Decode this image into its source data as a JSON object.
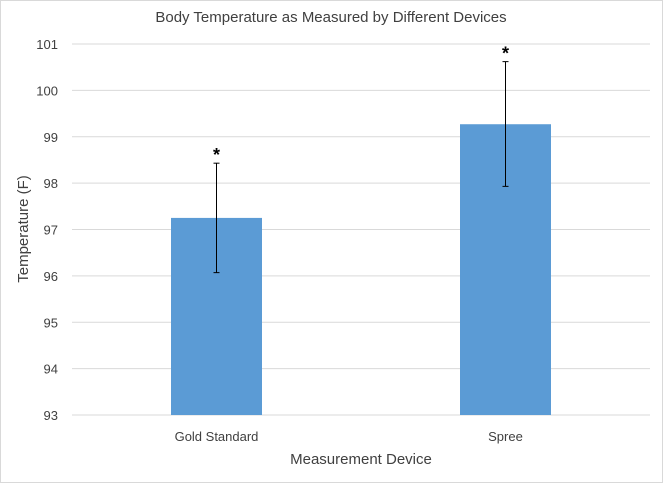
{
  "chart_data": {
    "type": "bar",
    "title": "Body Temperature as Measured by Different Devices",
    "xlabel": "Measurement Device",
    "ylabel": "Temperature (F)",
    "categories": [
      "Gold Standard",
      "Spree"
    ],
    "values": [
      97.25,
      99.27
    ],
    "error_bars": {
      "upper": [
        98.43,
        100.62
      ],
      "lower": [
        96.07,
        97.93
      ]
    },
    "annotations": [
      "*",
      "*"
    ],
    "ylim": [
      93,
      101
    ],
    "yticks": [
      "93",
      "94",
      "95",
      "96",
      "97",
      "98",
      "99",
      "100",
      "101"
    ],
    "grid": true,
    "legend": "none",
    "colors": {
      "bar": "#5b9bd5",
      "grid": "#d9d9d9",
      "text": "#404040",
      "error": "#000000"
    }
  }
}
